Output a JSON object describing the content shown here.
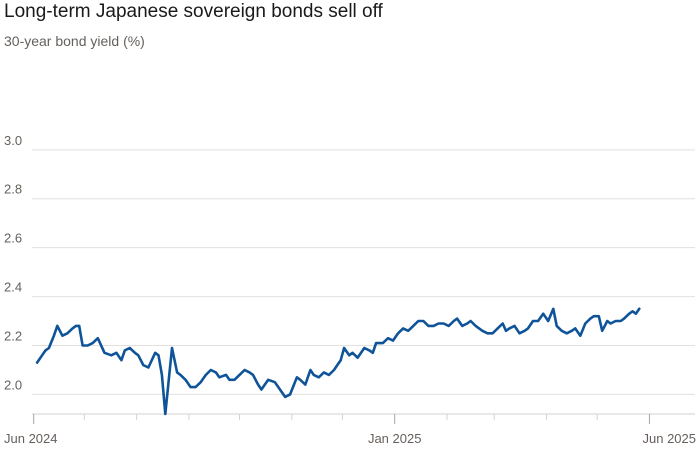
{
  "chart_data": {
    "type": "line",
    "title": "Long-term Japanese sovereign bonds sell off",
    "subtitle": "30-year bond yield (%)",
    "xlabel": "",
    "ylabel": "",
    "ylim": [
      1.92,
      3.22
    ],
    "y_ticks": [
      2.0,
      2.2,
      2.4,
      2.6,
      2.8,
      3.0
    ],
    "y_tick_labels": [
      "2.0",
      "2.2",
      "2.4",
      "2.6",
      "2.8",
      "3.0"
    ],
    "x_range": [
      "2024-05-31",
      "2025-06-12"
    ],
    "x_tick_labels": [
      {
        "date": "2024-06-01",
        "label": "Jun 2024"
      },
      {
        "date": "2025-01-01",
        "label": "Jan 2025"
      },
      {
        "date": "2025-06-01",
        "label": "Jun 2025"
      }
    ],
    "x_minor_ticks": [
      "2024-07-01",
      "2024-08-01",
      "2024-09-01",
      "2024-10-01",
      "2024-11-01",
      "2024-12-01",
      "2025-02-01",
      "2025-03-01",
      "2025-04-01",
      "2025-05-01"
    ],
    "grid": true,
    "series": [
      {
        "color": "#0f5499",
        "points": [
          [
            "2024-06-03",
            2.13
          ],
          [
            "2024-06-06",
            2.16
          ],
          [
            "2024-06-08",
            2.18
          ],
          [
            "2024-06-10",
            2.19
          ],
          [
            "2024-06-13",
            2.24
          ],
          [
            "2024-06-15",
            2.28
          ],
          [
            "2024-06-18",
            2.24
          ],
          [
            "2024-06-21",
            2.25
          ],
          [
            "2024-06-24",
            2.27
          ],
          [
            "2024-06-26",
            2.28
          ],
          [
            "2024-06-28",
            2.28
          ],
          [
            "2024-06-30",
            2.2
          ],
          [
            "2024-07-03",
            2.2
          ],
          [
            "2024-07-06",
            2.21
          ],
          [
            "2024-07-09",
            2.23
          ],
          [
            "2024-07-13",
            2.17
          ],
          [
            "2024-07-17",
            2.16
          ],
          [
            "2024-07-20",
            2.17
          ],
          [
            "2024-07-23",
            2.14
          ],
          [
            "2024-07-25",
            2.18
          ],
          [
            "2024-07-28",
            2.19
          ],
          [
            "2024-07-31",
            2.17
          ],
          [
            "2024-08-02",
            2.16
          ],
          [
            "2024-08-05",
            2.12
          ],
          [
            "2024-08-08",
            2.11
          ],
          [
            "2024-08-12",
            2.17
          ],
          [
            "2024-08-14",
            2.16
          ],
          [
            "2024-08-16",
            2.08
          ],
          [
            "2024-08-18",
            1.92
          ],
          [
            "2024-08-22",
            2.19
          ],
          [
            "2024-08-25",
            2.09
          ],
          [
            "2024-08-27",
            2.08
          ],
          [
            "2024-08-30",
            2.06
          ],
          [
            "2024-09-02",
            2.03
          ],
          [
            "2024-09-05",
            2.03
          ],
          [
            "2024-09-08",
            2.05
          ],
          [
            "2024-09-11",
            2.08
          ],
          [
            "2024-09-14",
            2.1
          ],
          [
            "2024-09-17",
            2.09
          ],
          [
            "2024-09-19",
            2.07
          ],
          [
            "2024-09-23",
            2.08
          ],
          [
            "2024-09-25",
            2.06
          ],
          [
            "2024-09-28",
            2.06
          ],
          [
            "2024-10-01",
            2.08
          ],
          [
            "2024-10-04",
            2.1
          ],
          [
            "2024-10-07",
            2.09
          ],
          [
            "2024-10-09",
            2.08
          ],
          [
            "2024-10-12",
            2.04
          ],
          [
            "2024-10-14",
            2.02
          ],
          [
            "2024-10-18",
            2.06
          ],
          [
            "2024-10-22",
            2.05
          ],
          [
            "2024-10-24",
            2.03
          ],
          [
            "2024-10-28",
            1.99
          ],
          [
            "2024-10-31",
            2.0
          ],
          [
            "2024-11-04",
            2.07
          ],
          [
            "2024-11-06",
            2.06
          ],
          [
            "2024-11-09",
            2.04
          ],
          [
            "2024-11-12",
            2.1
          ],
          [
            "2024-11-14",
            2.08
          ],
          [
            "2024-11-17",
            2.07
          ],
          [
            "2024-11-20",
            2.09
          ],
          [
            "2024-11-23",
            2.08
          ],
          [
            "2024-11-26",
            2.1
          ],
          [
            "2024-11-28",
            2.12
          ],
          [
            "2024-11-30",
            2.14
          ],
          [
            "2024-12-02",
            2.19
          ],
          [
            "2024-12-05",
            2.16
          ],
          [
            "2024-12-07",
            2.17
          ],
          [
            "2024-12-10",
            2.15
          ],
          [
            "2024-12-14",
            2.19
          ],
          [
            "2024-12-17",
            2.18
          ],
          [
            "2024-12-19",
            2.17
          ],
          [
            "2024-12-21",
            2.21
          ],
          [
            "2024-12-25",
            2.21
          ],
          [
            "2024-12-28",
            2.23
          ],
          [
            "2024-12-31",
            2.22
          ],
          [
            "2025-01-03",
            2.25
          ],
          [
            "2025-01-06",
            2.27
          ],
          [
            "2025-01-09",
            2.26
          ],
          [
            "2025-01-12",
            2.28
          ],
          [
            "2025-01-15",
            2.3
          ],
          [
            "2025-01-18",
            2.3
          ],
          [
            "2025-01-21",
            2.28
          ],
          [
            "2025-01-24",
            2.28
          ],
          [
            "2025-01-27",
            2.29
          ],
          [
            "2025-01-30",
            2.29
          ],
          [
            "2025-02-02",
            2.28
          ],
          [
            "2025-02-05",
            2.3
          ],
          [
            "2025-02-07",
            2.31
          ],
          [
            "2025-02-10",
            2.28
          ],
          [
            "2025-02-13",
            2.29
          ],
          [
            "2025-02-15",
            2.3
          ],
          [
            "2025-02-18",
            2.28
          ],
          [
            "2025-02-20",
            2.27
          ],
          [
            "2025-02-22",
            2.26
          ],
          [
            "2025-02-25",
            2.25
          ],
          [
            "2025-02-28",
            2.25
          ],
          [
            "2025-03-03",
            2.27
          ],
          [
            "2025-03-06",
            2.29
          ],
          [
            "2025-03-08",
            2.26
          ],
          [
            "2025-03-10",
            2.27
          ],
          [
            "2025-03-13",
            2.28
          ],
          [
            "2025-03-16",
            2.25
          ],
          [
            "2025-03-19",
            2.26
          ],
          [
            "2025-03-21",
            2.27
          ],
          [
            "2025-03-24",
            2.3
          ],
          [
            "2025-03-27",
            2.3
          ],
          [
            "2025-03-30",
            2.33
          ],
          [
            "2025-04-02",
            2.3
          ],
          [
            "2025-04-05",
            2.35
          ],
          [
            "2025-04-07",
            2.28
          ],
          [
            "2025-04-10",
            2.26
          ],
          [
            "2025-04-13",
            2.25
          ],
          [
            "2025-04-16",
            2.26
          ],
          [
            "2025-04-18",
            2.27
          ],
          [
            "2025-04-21",
            2.24
          ],
          [
            "2025-04-24",
            2.29
          ],
          [
            "2025-04-27",
            2.31
          ],
          [
            "2025-04-29",
            2.32
          ],
          [
            "2025-05-02",
            2.32
          ],
          [
            "2025-05-04",
            2.26
          ],
          [
            "2025-05-07",
            2.3
          ],
          [
            "2025-05-09",
            2.29
          ],
          [
            "2025-05-12",
            2.3
          ],
          [
            "2025-05-15",
            2.3
          ],
          [
            "2025-05-17",
            2.31
          ],
          [
            "2025-05-20",
            2.33
          ],
          [
            "2025-05-22",
            2.34
          ],
          [
            "2025-05-24",
            2.33
          ],
          [
            "2025-05-26",
            2.35
          ]
        ]
      }
    ]
  }
}
